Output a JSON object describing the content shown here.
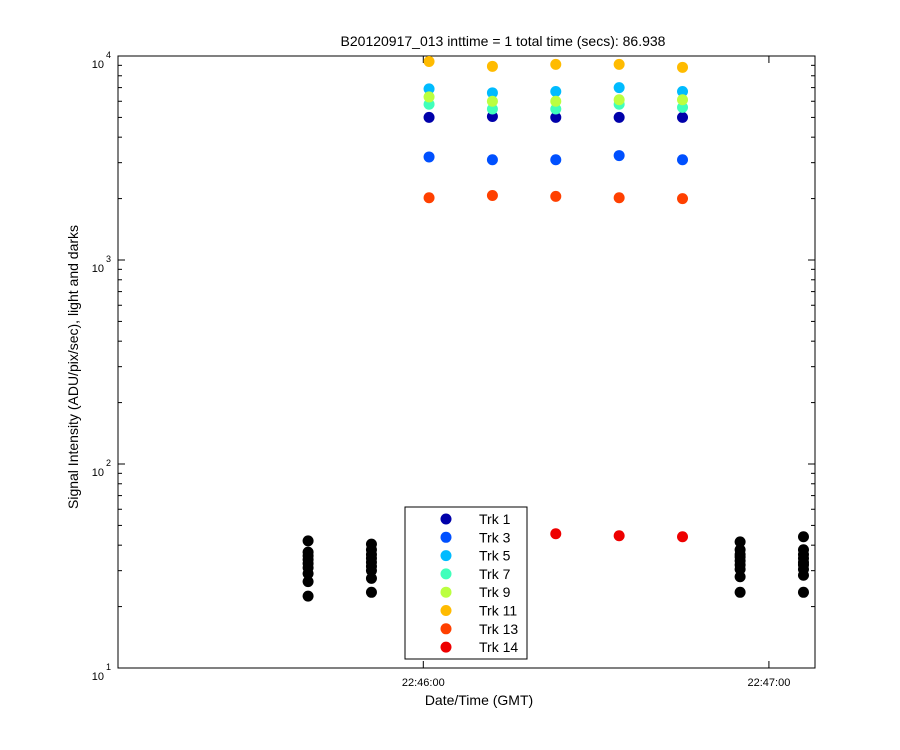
{
  "chart_data": {
    "type": "scatter",
    "title": "B20120917_013 inttime = 1 total time (secs): 86.938",
    "xlabel": "Date/Time (GMT)",
    "ylabel": "Signal Intensity (ADU/pix/sec), light and darks",
    "yscale": "log",
    "ylim": [
      10,
      10000
    ],
    "xlim": [
      "22:45:07",
      "22:47:08"
    ],
    "x_ticks": [
      {
        "time": "22:46:00",
        "label": "22:46:00"
      },
      {
        "time": "22:47:00",
        "label": "22:47:00"
      }
    ],
    "y_ticks": [
      {
        "value": 10,
        "base": "10",
        "exp": "1"
      },
      {
        "value": 100,
        "base": "10",
        "exp": "2"
      },
      {
        "value": 1000,
        "base": "10",
        "exp": "3"
      },
      {
        "value": 10000,
        "base": "10",
        "exp": "4"
      }
    ],
    "grid": false,
    "legend_position": "bottom-center",
    "series": [
      {
        "name": "Trk 1",
        "color": "#0000aa",
        "x": [
          "22:46:01",
          "22:46:12",
          "22:46:23",
          "22:46:34",
          "22:46:45"
        ],
        "y": [
          5000,
          5050,
          5000,
          5000,
          5000
        ]
      },
      {
        "name": "Trk 3",
        "color": "#0050ff",
        "x": [
          "22:46:01",
          "22:46:12",
          "22:46:23",
          "22:46:34",
          "22:46:45"
        ],
        "y": [
          3200,
          3100,
          3100,
          3250,
          3100
        ]
      },
      {
        "name": "Trk 5",
        "color": "#00bbff",
        "x": [
          "22:46:01",
          "22:46:12",
          "22:46:23",
          "22:46:34",
          "22:46:45"
        ],
        "y": [
          6900,
          6600,
          6700,
          7000,
          6700
        ]
      },
      {
        "name": "Trk 7",
        "color": "#40ffbb",
        "x": [
          "22:46:01",
          "22:46:12",
          "22:46:23",
          "22:46:34",
          "22:46:45"
        ],
        "y": [
          5800,
          5500,
          5500,
          5800,
          5600
        ]
      },
      {
        "name": "Trk 9",
        "color": "#bbff40",
        "x": [
          "22:46:01",
          "22:46:12",
          "22:46:23",
          "22:46:34",
          "22:46:45"
        ],
        "y": [
          6300,
          6000,
          6000,
          6100,
          6100
        ]
      },
      {
        "name": "Trk 11",
        "color": "#ffbb00",
        "x": [
          "22:46:01",
          "22:46:12",
          "22:46:23",
          "22:46:34",
          "22:46:45"
        ],
        "y": [
          9400,
          8900,
          9100,
          9100,
          8800
        ]
      },
      {
        "name": "Trk 13",
        "color": "#ff4000",
        "x": [
          "22:46:01",
          "22:46:12",
          "22:46:23",
          "22:46:34",
          "22:46:45"
        ],
        "y": [
          2020,
          2070,
          2050,
          2020,
          2000
        ]
      },
      {
        "name": "Trk 14",
        "color": "#ee0000",
        "x": [
          "22:46:01",
          "22:46:12",
          "22:46:23",
          "22:46:34",
          "22:46:45"
        ],
        "y": [
          38,
          39,
          45.5,
          44.5,
          44
        ]
      }
    ],
    "darks": {
      "color": "#000000",
      "x": [
        "22:45:40",
        "22:45:40",
        "22:45:40",
        "22:45:40",
        "22:45:40",
        "22:45:40",
        "22:45:40",
        "22:45:40",
        "22:45:40",
        "22:45:51",
        "22:45:51",
        "22:45:51",
        "22:45:51",
        "22:45:51",
        "22:45:51",
        "22:45:51",
        "22:45:51",
        "22:45:51",
        "22:46:55",
        "22:46:55",
        "22:46:55",
        "22:46:55",
        "22:46:55",
        "22:46:55",
        "22:46:55",
        "22:46:55",
        "22:46:55",
        "22:47:06",
        "22:47:06",
        "22:47:06",
        "22:47:06",
        "22:47:06",
        "22:47:06",
        "22:47:06",
        "22:47:06",
        "22:47:06"
      ],
      "y": [
        22.5,
        26.5,
        29,
        31,
        32.5,
        34,
        35.5,
        37,
        42,
        23.5,
        27.5,
        30,
        31.5,
        33,
        34.5,
        36,
        38,
        40.5,
        23.5,
        28,
        30.5,
        32,
        33.5,
        35,
        36,
        38,
        41.5,
        23.5,
        28.5,
        30.5,
        32,
        33,
        34.5,
        36,
        38,
        44
      ]
    }
  }
}
